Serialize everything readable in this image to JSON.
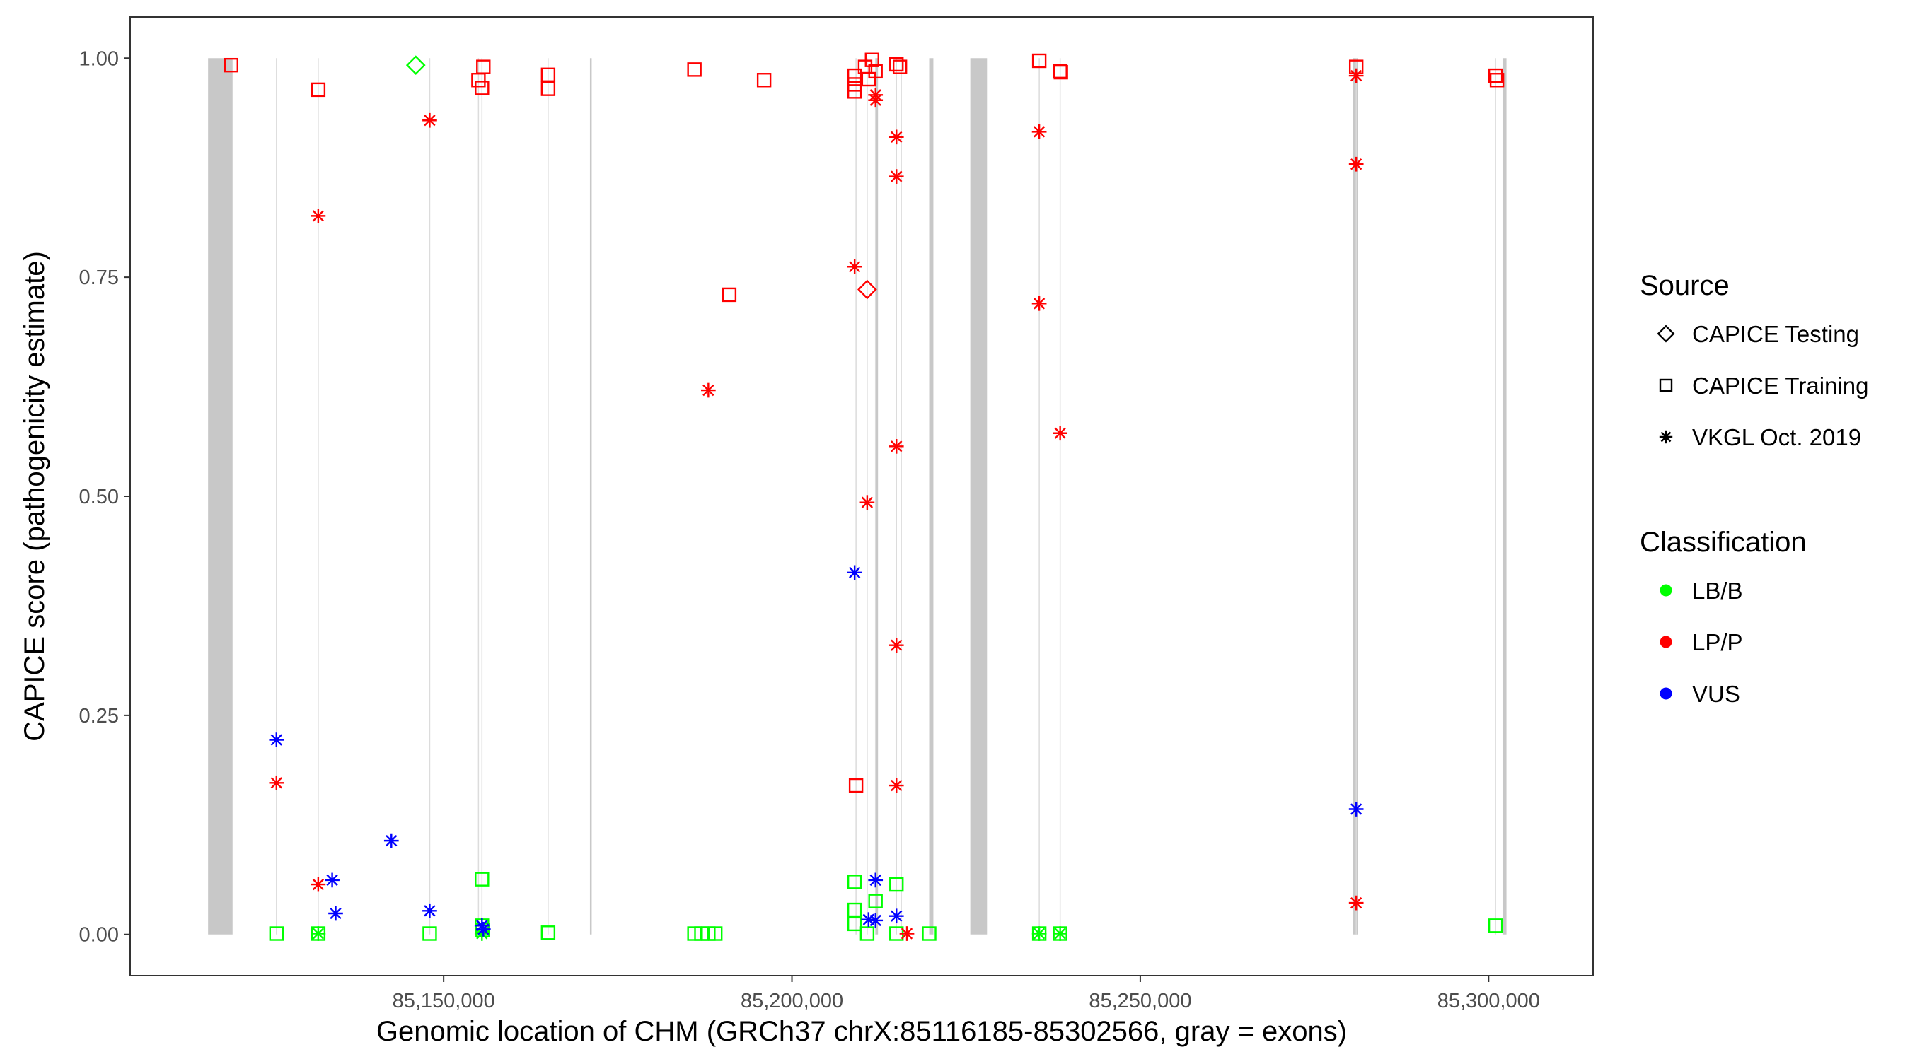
{
  "chart_data": {
    "type": "scatter",
    "xlabel": "Genomic location of CHM (GRCh37 chrX:85116185-85302566, gray = exons)",
    "ylabel": "CAPICE score (pathogenicity estimate)",
    "xlim": [
      85105000,
      85315000
    ],
    "ylim": [
      -0.047,
      1.047
    ],
    "x_ticks": [
      85150000,
      85200000,
      85250000,
      85300000
    ],
    "x_tick_labels": [
      "85,150,000",
      "85,200,000",
      "85,250,000",
      "85,300,000"
    ],
    "y_ticks": [
      0,
      0.25,
      0.5,
      0.75,
      1.0
    ],
    "y_tick_labels": [
      "0.00",
      "0.25",
      "0.50",
      "0.75",
      "1.00"
    ],
    "grid": false,
    "exon_color": "#c8c8c8",
    "exons": [
      {
        "start": 85116185,
        "end": 85119700
      },
      {
        "start": 85225600,
        "end": 85228000
      },
      {
        "start": 85280500,
        "end": 85281200
      },
      {
        "start": 85302000,
        "end": 85302566
      },
      {
        "start": 85171000,
        "end": 85171100
      },
      {
        "start": 85212100,
        "end": 85212300
      },
      {
        "start": 85219700,
        "end": 85220300
      }
    ],
    "variant_lines": [
      85126000,
      85132000,
      85148000,
      85155000,
      85155500,
      85165000,
      85209200,
      85210800,
      85212000,
      85215000,
      85215700,
      85235500,
      85238500,
      85281000,
      85301000
    ],
    "legend_source": {
      "title": "Source",
      "entries": [
        {
          "label": "CAPICE Testing",
          "shape": "diamond"
        },
        {
          "label": "CAPICE Training",
          "shape": "square"
        },
        {
          "label": "VKGL Oct. 2019",
          "shape": "asterisk"
        }
      ]
    },
    "legend_classification": {
      "title": "Classification",
      "entries": [
        {
          "label": "LB/B",
          "color": "#00ff00"
        },
        {
          "label": "LP/P",
          "color": "#ff0000"
        },
        {
          "label": "VUS",
          "color": "#0000ff"
        }
      ]
    },
    "legend_placement": "right",
    "series": [
      {
        "source": "CAPICE Training",
        "classification": "LP/P",
        "points": [
          [
            85119500,
            0.992
          ],
          [
            85132000,
            0.964
          ],
          [
            85155000,
            0.975
          ],
          [
            85155500,
            0.966
          ],
          [
            85155700,
            0.99
          ],
          [
            85165000,
            0.965
          ],
          [
            85165000,
            0.981
          ],
          [
            85186000,
            0.987
          ],
          [
            85196000,
            0.975
          ],
          [
            85191000,
            0.73
          ],
          [
            85209000,
            0.98
          ],
          [
            85209000,
            0.97
          ],
          [
            85209000,
            0.962
          ],
          [
            85209200,
            0.17
          ],
          [
            85210500,
            0.99
          ],
          [
            85211000,
            0.976
          ],
          [
            85211500,
            0.998
          ],
          [
            85212000,
            0.985
          ],
          [
            85215000,
            0.993
          ],
          [
            85215500,
            0.99
          ],
          [
            85235500,
            0.997
          ],
          [
            85238500,
            0.985
          ],
          [
            85238600,
            0.984
          ],
          [
            85281000,
            0.99
          ],
          [
            85301000,
            0.98
          ],
          [
            85301200,
            0.975
          ]
        ]
      },
      {
        "source": "CAPICE Training",
        "classification": "LB/B",
        "points": [
          [
            85126000,
            0.001
          ],
          [
            85132000,
            0.001
          ],
          [
            85148000,
            0.001
          ],
          [
            85155500,
            0.063
          ],
          [
            85155500,
            0.01
          ],
          [
            85155600,
            0.005
          ],
          [
            85165000,
            0.002
          ],
          [
            85186000,
            0.001
          ],
          [
            85187000,
            0.001
          ],
          [
            85188000,
            0.001
          ],
          [
            85189000,
            0.001
          ],
          [
            85209000,
            0.06
          ],
          [
            85209000,
            0.028
          ],
          [
            85209000,
            0.012
          ],
          [
            85210800,
            0.001
          ],
          [
            85212000,
            0.038
          ],
          [
            85215000,
            0.057
          ],
          [
            85215000,
            0.001
          ],
          [
            85219700,
            0.001
          ],
          [
            85235500,
            0.001
          ],
          [
            85238500,
            0.001
          ],
          [
            85301000,
            0.01
          ]
        ]
      },
      {
        "source": "CAPICE Testing",
        "classification": "LB/B",
        "points": [
          [
            85146000,
            0.992
          ]
        ]
      },
      {
        "source": "CAPICE Testing",
        "classification": "LP/P",
        "points": [
          [
            85210800,
            0.736
          ]
        ]
      },
      {
        "source": "VKGL Oct. 2019",
        "classification": "LP/P",
        "points": [
          [
            85132000,
            0.82
          ],
          [
            85126000,
            0.173
          ],
          [
            85132000,
            0.057
          ],
          [
            85148000,
            0.929
          ],
          [
            85188000,
            0.621
          ],
          [
            85209000,
            0.762
          ],
          [
            85210800,
            0.493
          ],
          [
            85212000,
            0.958
          ],
          [
            85212000,
            0.952
          ],
          [
            85215000,
            0.91
          ],
          [
            85215000,
            0.865
          ],
          [
            85215000,
            0.557
          ],
          [
            85215000,
            0.33
          ],
          [
            85215000,
            0.17
          ],
          [
            85216500,
            0.001
          ],
          [
            85235500,
            0.916
          ],
          [
            85235500,
            0.72
          ],
          [
            85238500,
            0.572
          ],
          [
            85281000,
            0.98
          ],
          [
            85281000,
            0.879
          ],
          [
            85281000,
            0.036
          ]
        ]
      },
      {
        "source": "VKGL Oct. 2019",
        "classification": "LB/B",
        "points": [
          [
            85132000,
            0.001
          ],
          [
            85155500,
            0.001
          ],
          [
            85235500,
            0.001
          ],
          [
            85238500,
            0.001
          ]
        ]
      },
      {
        "source": "VKGL Oct. 2019",
        "classification": "VUS",
        "points": [
          [
            85126000,
            0.222
          ],
          [
            85134000,
            0.062
          ],
          [
            85134500,
            0.024
          ],
          [
            85142500,
            0.107
          ],
          [
            85148000,
            0.027
          ],
          [
            85155500,
            0.01
          ],
          [
            85155700,
            0.006
          ],
          [
            85209000,
            0.413
          ],
          [
            85211000,
            0.017
          ],
          [
            85212000,
            0.062
          ],
          [
            85212000,
            0.016
          ],
          [
            85215000,
            0.021
          ],
          [
            85281000,
            0.143
          ]
        ]
      }
    ]
  }
}
